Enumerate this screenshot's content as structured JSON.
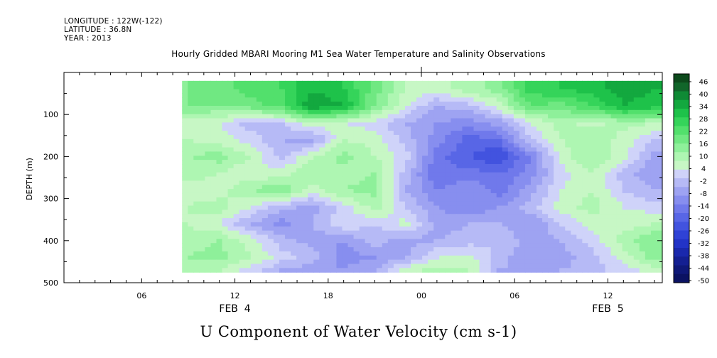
{
  "header": {
    "longitude": "LONGITUDE : 122W(-122)",
    "latitude": "LATITUDE : 36.8N",
    "year": "YEAR : 2013",
    "subtitle": "Hourly Gridded MBARI Mooring M1 Sea Water Temperature and Salinity Observations"
  },
  "chart_data": {
    "type": "heatmap",
    "title": "U Component of Water Velocity (cm s-1)",
    "subtitle": "Hourly Gridded MBARI Mooring M1 Sea Water Temperature and Salinity Observations",
    "ylabel": "DEPTH (m)",
    "xlabel": "",
    "x_ticks": [
      "06",
      "12",
      "18",
      "00",
      "06",
      "12"
    ],
    "x_date_labels": [
      "FEB  4",
      "FEB  5"
    ],
    "y_ticks": [
      "100",
      "200",
      "300",
      "400",
      "500"
    ],
    "y_tick_values": [
      100,
      200,
      300,
      400,
      500
    ],
    "ylim": [
      500,
      0
    ],
    "xlim_hours": [
      1,
      39.5
    ],
    "colorbar_labels": [
      "46",
      "40",
      "34",
      "28",
      "22",
      "16",
      "10",
      "4",
      "-2",
      "-8",
      "-14",
      "-20",
      "-26",
      "-32",
      "-38",
      "-44",
      "-50"
    ],
    "colorbar_range": [
      -50,
      46
    ],
    "data_start_hour": 8.6,
    "data_depth_range": [
      20,
      475
    ],
    "hours": [
      9,
      11,
      13,
      15,
      17,
      19,
      21,
      23,
      25,
      27,
      29,
      31,
      33,
      35,
      37,
      39
    ],
    "depths": [
      40,
      80,
      120,
      160,
      200,
      240,
      280,
      320,
      360,
      400,
      440,
      470
    ],
    "values": [
      [
        14,
        16,
        20,
        22,
        30,
        26,
        16,
        6,
        4,
        8,
        12,
        24,
        26,
        28,
        32,
        30
      ],
      [
        14,
        14,
        16,
        20,
        34,
        30,
        14,
        2,
        -6,
        -4,
        4,
        18,
        16,
        22,
        30,
        28
      ],
      [
        4,
        2,
        -4,
        -2,
        6,
        2,
        0,
        -6,
        -10,
        -12,
        -8,
        2,
        8,
        4,
        8,
        6
      ],
      [
        6,
        4,
        0,
        -6,
        -8,
        6,
        4,
        -4,
        -12,
        -20,
        -18,
        -2,
        6,
        10,
        4,
        -2
      ],
      [
        10,
        12,
        6,
        -4,
        6,
        12,
        6,
        0,
        -16,
        -22,
        -26,
        -14,
        4,
        10,
        4,
        -8
      ],
      [
        8,
        6,
        2,
        4,
        10,
        8,
        10,
        -4,
        -18,
        -16,
        -18,
        -12,
        0,
        6,
        -4,
        -10
      ],
      [
        4,
        4,
        10,
        14,
        4,
        10,
        12,
        -6,
        -14,
        -10,
        -16,
        -8,
        2,
        6,
        -2,
        -6
      ],
      [
        6,
        8,
        2,
        -4,
        -8,
        0,
        8,
        -2,
        -10,
        -14,
        -10,
        -4,
        4,
        8,
        2,
        0
      ],
      [
        6,
        2,
        -6,
        -12,
        -6,
        2,
        -2,
        4,
        -8,
        -6,
        -6,
        -10,
        -2,
        4,
        4,
        6
      ],
      [
        8,
        10,
        4,
        -4,
        -8,
        -10,
        -4,
        -8,
        -6,
        -4,
        -2,
        -8,
        -6,
        0,
        8,
        14
      ],
      [
        10,
        12,
        6,
        0,
        -4,
        -12,
        -10,
        -6,
        2,
        4,
        -4,
        -10,
        -8,
        -4,
        4,
        12
      ],
      [
        8,
        6,
        0,
        -6,
        -8,
        -10,
        -6,
        4,
        8,
        6,
        -6,
        -8,
        -6,
        -4,
        0,
        4
      ]
    ]
  },
  "colors": {
    "colorbar": [
      "#0d4a1c",
      "#11662a",
      "#0f8a35",
      "#13a83f",
      "#1ec24a",
      "#35d45a",
      "#52e06c",
      "#70e882",
      "#8ef09a",
      "#aef6b2",
      "#c7f7c5",
      "#cfd3f9",
      "#b6baf6",
      "#9ea3f2",
      "#878eef",
      "#7079eb",
      "#5866e6",
      "#4253df",
      "#2f42d6",
      "#2233c7",
      "#1a28ad",
      "#141f92",
      "#0f1878",
      "#0b1262"
    ]
  }
}
